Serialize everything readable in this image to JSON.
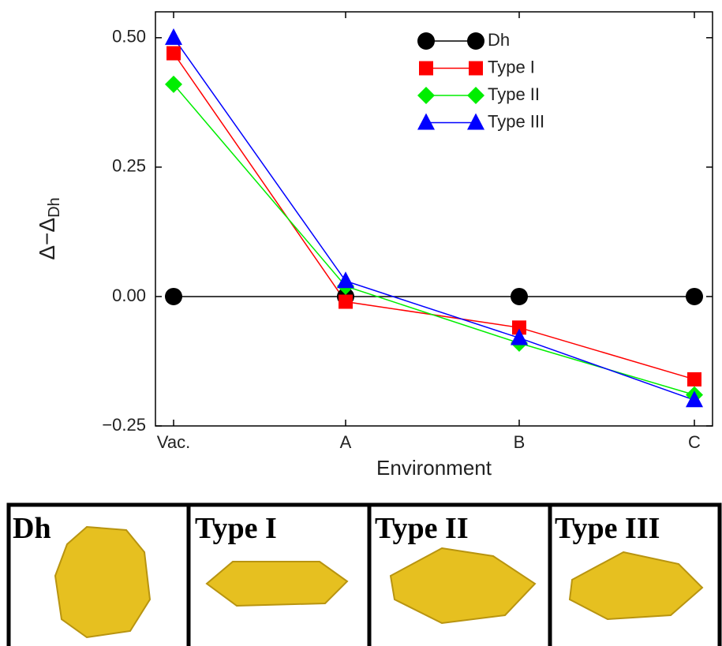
{
  "chart_data": {
    "type": "line",
    "x_label": "Environment",
    "y_label": {
      "main": "Δ−Δ",
      "sub": "Dh"
    },
    "categories": [
      "Vac.",
      "A",
      "B",
      "C"
    ],
    "series": [
      {
        "name": "Dh",
        "color": "#000000",
        "marker": "circle",
        "values": [
          0,
          0,
          0,
          0
        ]
      },
      {
        "name": "Type I",
        "color": "#ff0000",
        "marker": "square",
        "values": [
          0.47,
          -0.01,
          -0.06,
          -0.16
        ]
      },
      {
        "name": "Type II",
        "color": "#00ee00",
        "marker": "diamond",
        "values": [
          0.41,
          0.02,
          -0.09,
          -0.19
        ]
      },
      {
        "name": "Type III",
        "color": "#0000ff",
        "marker": "triangle",
        "values": [
          0.5,
          0.03,
          -0.08,
          -0.2
        ]
      }
    ],
    "ylim": [
      -0.25,
      0.55
    ],
    "yticks": [
      {
        "value": -0.25,
        "label": "−0.25"
      },
      {
        "value": 0,
        "label": "0.00"
      },
      {
        "value": 0.25,
        "label": "0.25"
      },
      {
        "value": 0.5,
        "label": "0.50"
      }
    ],
    "legend": "upper-right"
  },
  "panels": [
    {
      "label": "Dh"
    },
    {
      "label": "Type I"
    },
    {
      "label": "Type II"
    },
    {
      "label": "Type III"
    }
  ]
}
